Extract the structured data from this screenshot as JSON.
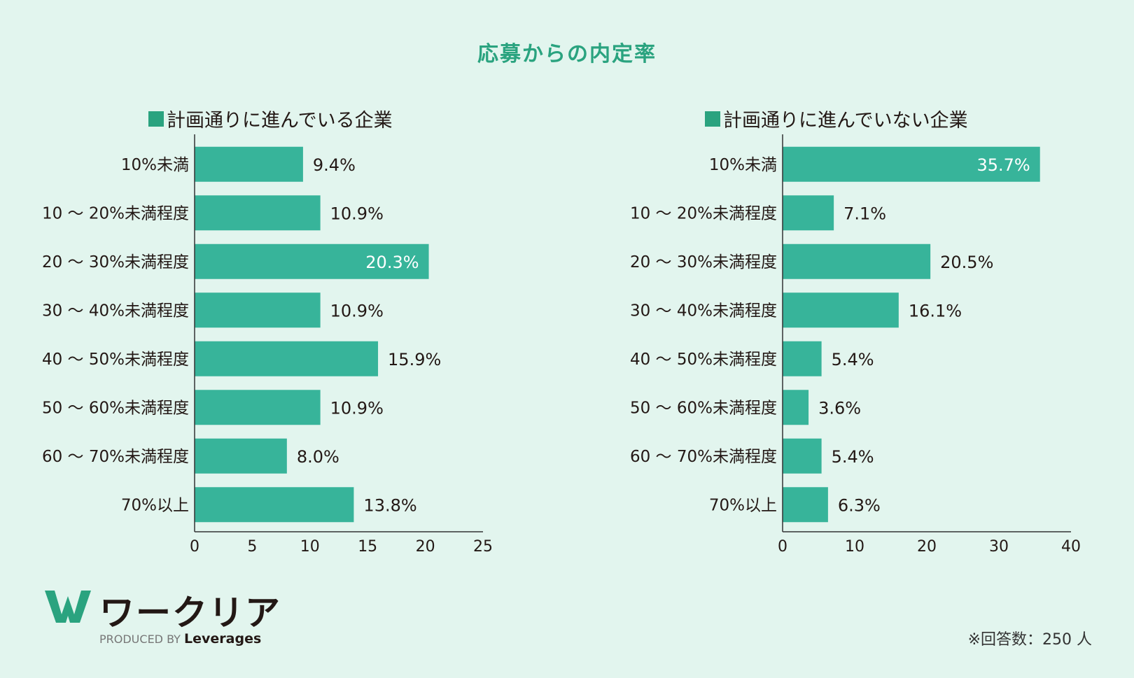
{
  "title": "応募からの内定率",
  "footnote": "※回答数：250 人",
  "logo": {
    "name": "ワークリア",
    "produced_by": "PRODUCED BY",
    "brand": "Leverages"
  },
  "colors": {
    "bar": "#37b49a",
    "accent": "#2aa37f",
    "background": "#e2f5ee",
    "text": "#231815"
  },
  "chart_data": [
    {
      "type": "bar",
      "orientation": "horizontal",
      "legend": "計画通りに進んでいる企業",
      "categories": [
        "10%未満",
        "10 〜 20%未満程度",
        "20 〜 30%未満程度",
        "30 〜 40%未満程度",
        "40 〜 50%未満程度",
        "50 〜 60%未満程度",
        "60 〜 70%未満程度",
        "70%以上"
      ],
      "values": [
        9.4,
        10.9,
        20.3,
        10.9,
        15.9,
        10.9,
        8.0,
        13.8
      ],
      "value_labels": [
        "9.4%",
        "10.9%",
        "20.3%",
        "10.9%",
        "15.9%",
        "10.9%",
        "8.0%",
        "13.8%"
      ],
      "xlim": [
        0,
        25
      ],
      "xticks": [
        0,
        5,
        10,
        15,
        20,
        25
      ],
      "grid": false
    },
    {
      "type": "bar",
      "orientation": "horizontal",
      "legend": "計画通りに進んでいない企業",
      "categories": [
        "10%未満",
        "10 〜 20%未満程度",
        "20 〜 30%未満程度",
        "30 〜 40%未満程度",
        "40 〜 50%未満程度",
        "50 〜 60%未満程度",
        "60 〜 70%未満程度",
        "70%以上"
      ],
      "values": [
        35.7,
        7.1,
        20.5,
        16.1,
        5.4,
        3.6,
        5.4,
        6.3
      ],
      "value_labels": [
        "35.7%",
        "7.1%",
        "20.5%",
        "16.1%",
        "5.4%",
        "3.6%",
        "5.4%",
        "6.3%"
      ],
      "xlim": [
        0,
        40
      ],
      "xticks": [
        0,
        10,
        20,
        30,
        40
      ],
      "grid": false
    }
  ]
}
